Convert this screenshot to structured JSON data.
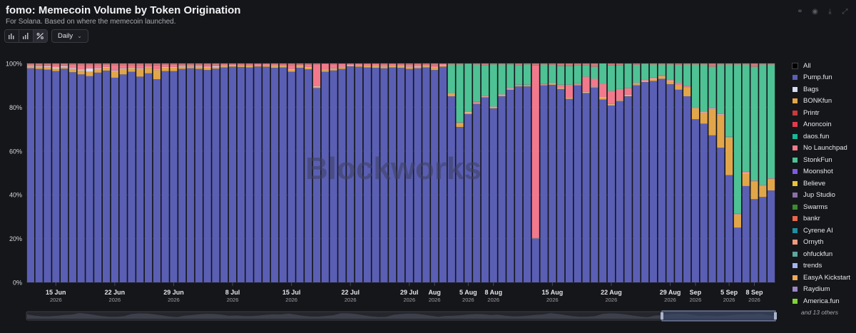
{
  "header": {
    "title": "fomo: Memecoin Volume by Token Origination",
    "subtitle": "For Solana. Based on where the memecoin launched.",
    "interval_label": "Daily",
    "icons": [
      "bar-chart-icon",
      "column-chart-icon",
      "percent-chart-icon",
      "link-icon",
      "camera-icon",
      "download-icon",
      "expand-icon"
    ]
  },
  "watermark": "Blockworks",
  "legend": {
    "items": [
      {
        "label": "All",
        "color": "#000000"
      },
      {
        "label": "Pump.fun",
        "color": "#5a5fb4"
      },
      {
        "label": "Bags",
        "color": "#d6ddf5"
      },
      {
        "label": "BONKfun",
        "color": "#e2a64a"
      },
      {
        "label": "Printr",
        "color": "#c93a3a"
      },
      {
        "label": "Anoncoin",
        "color": "#e63950"
      },
      {
        "label": "daos.fun",
        "color": "#19b896"
      },
      {
        "label": "No Launchpad",
        "color": "#f2798c"
      },
      {
        "label": "StonkFun",
        "color": "#4ec295"
      },
      {
        "label": "Moonshot",
        "color": "#7b5ce2"
      },
      {
        "label": "Believe",
        "color": "#e6c23a"
      },
      {
        "label": "Jup Studio",
        "color": "#8c6fa6"
      },
      {
        "label": "Swarms",
        "color": "#3d8a2e"
      },
      {
        "label": "bankr",
        "color": "#e8674a"
      },
      {
        "label": "Cyrene AI",
        "color": "#1f8fa3"
      },
      {
        "label": "Ornyth",
        "color": "#f09a7e"
      },
      {
        "label": "ohfuckfun",
        "color": "#5ea69e"
      },
      {
        "label": "trends",
        "color": "#a6b3ee"
      },
      {
        "label": "EasyA Kickstart",
        "color": "#eea85a"
      },
      {
        "label": "Raydium",
        "color": "#9a86c6"
      },
      {
        "label": "America.fun",
        "color": "#7fd33a"
      }
    ],
    "more_label": "and 13 others"
  },
  "chart_data": {
    "type": "bar",
    "stacked": "percent",
    "xlabel": "",
    "ylabel": "",
    "ylim": [
      0,
      100
    ],
    "y_ticks": [
      "0%",
      "20%",
      "40%",
      "60%",
      "80%",
      "100%"
    ],
    "x_ticks": [
      {
        "index": 3,
        "line1": "15 Jun",
        "line2": "2026"
      },
      {
        "index": 10,
        "line1": "22 Jun",
        "line2": "2026"
      },
      {
        "index": 17,
        "line1": "29 Jun",
        "line2": "2026"
      },
      {
        "index": 24,
        "line1": "8 Jul",
        "line2": "2026"
      },
      {
        "index": 31,
        "line1": "15 Jul",
        "line2": "2026"
      },
      {
        "index": 38,
        "line1": "22 Jul",
        "line2": "2026"
      },
      {
        "index": 45,
        "line1": "29 Jul",
        "line2": "2026"
      },
      {
        "index": 48,
        "line1": "Aug",
        "line2": "2026"
      },
      {
        "index": 52,
        "line1": "5 Aug",
        "line2": "2026"
      },
      {
        "index": 55,
        "line1": "8 Aug",
        "line2": "2026"
      },
      {
        "index": 62,
        "line1": "15 Aug",
        "line2": "2026"
      },
      {
        "index": 69,
        "line1": "22 Aug",
        "line2": "2026"
      },
      {
        "index": 76,
        "line1": "29 Aug",
        "line2": "2026"
      },
      {
        "index": 79,
        "line1": "Sep",
        "line2": "2026"
      },
      {
        "index": 83,
        "line1": "5 Sep",
        "line2": "2026"
      },
      {
        "index": 86,
        "line1": "8 Sep",
        "line2": "2026"
      }
    ],
    "series": [
      {
        "name": "Pump.fun",
        "color": "#5a5fb4",
        "values": [
          97.8,
          97.5,
          97.2,
          96.5,
          97.6,
          96,
          95,
          94.2,
          95.8,
          96.7,
          93.5,
          95,
          96.2,
          94,
          95.5,
          92.8,
          96.5,
          96.5,
          97.5,
          97.8,
          97.5,
          97,
          97.6,
          98.2,
          98.5,
          98.4,
          98.2,
          98.6,
          98.5,
          98,
          98.2,
          96.2,
          98,
          97.3,
          88.8,
          96.2,
          96.8,
          97.5,
          98.7,
          98.5,
          98.2,
          98,
          97.8,
          98.2,
          98,
          97.5,
          97.8,
          98.2,
          97,
          98.5,
          85,
          71,
          76.5,
          81.5,
          84.5,
          79.5,
          85.2,
          87.8,
          89.5,
          89.5,
          20,
          90,
          89.6,
          88.3,
          83.5,
          90,
          86.5,
          89,
          83.5,
          80.8,
          82.8,
          85,
          90,
          91.5,
          92,
          93,
          90.5,
          88,
          85,
          74.5,
          72.5,
          67.5,
          61.5,
          49,
          25,
          44,
          38,
          39,
          42
        ]
      },
      {
        "name": "BONKfun",
        "color": "#e2a64a",
        "values": [
          0.8,
          1,
          1.2,
          1.2,
          0.8,
          1.5,
          1.8,
          2,
          1.6,
          1.4,
          3,
          2.5,
          1.6,
          3.5,
          2.5,
          4.2,
          1.6,
          1.6,
          1,
          0.8,
          1,
          1.2,
          0.8,
          0.6,
          0.5,
          0.5,
          0.7,
          0.5,
          0.6,
          0.8,
          0.7,
          1,
          0.7,
          0.9,
          0.6,
          0.8,
          0.8,
          0.8,
          0.5,
          0.6,
          0.7,
          0.8,
          0.8,
          0.7,
          0.8,
          0.9,
          0.7,
          0.6,
          1,
          0.5,
          1,
          1.5,
          0.8,
          0.5,
          0.3,
          0.3,
          0.3,
          0.3,
          0.3,
          0.3,
          0.1,
          0.3,
          0.3,
          0.3,
          0.3,
          0.3,
          0.3,
          0.3,
          1,
          0.5,
          0.3,
          0.5,
          0.5,
          0.5,
          1,
          1.2,
          1.5,
          2,
          4,
          5,
          5,
          12,
          15,
          17,
          6,
          6,
          8,
          5,
          5
        ]
      },
      {
        "name": "Bags",
        "color": "#d6ddf5",
        "values": [
          0.3,
          0.3,
          0.3,
          0.5,
          0.3,
          0.4,
          0.5,
          1.5,
          0.3,
          0.3,
          0.3,
          0.3,
          0.3,
          0.3,
          0.3,
          0.3,
          0.3,
          0.3,
          0.3,
          0.2,
          0.3,
          0.3,
          0.3,
          0.2,
          0.2,
          0.2,
          0.2,
          0.2,
          0.2,
          0.2,
          0.2,
          0.3,
          0.2,
          0.2,
          0.2,
          0.2,
          0.2,
          0.2,
          0.2,
          0.2,
          0.2,
          0.2,
          0.2,
          0.2,
          0.2,
          0.2,
          0.2,
          0.2,
          0.2,
          0.2,
          0.2,
          0.2,
          0.2,
          0.2,
          0.2,
          0.2,
          0.2,
          0.2,
          0.2,
          0.2,
          0.1,
          0.2,
          0.2,
          0.2,
          0.2,
          0.2,
          0.2,
          0.2,
          0.2,
          0.2,
          0.2,
          0.2,
          0.2,
          0.2,
          0.2,
          0.2,
          0.2,
          0.2,
          0.2,
          0.2,
          0.2,
          0.2,
          0.2,
          0.2,
          0.2,
          0.2,
          0.2,
          0.2,
          0.2
        ]
      },
      {
        "name": "No Launchpad",
        "color": "#f2798c",
        "values": [
          0.3,
          0.5,
          0.6,
          1,
          0.6,
          1.5,
          2,
          1.5,
          1.5,
          1,
          2.5,
          1.5,
          1.2,
          1.5,
          1,
          1.8,
          1,
          1,
          0.6,
          0.6,
          0.6,
          0.8,
          0.6,
          0.5,
          0.4,
          0.4,
          0.4,
          0.4,
          0.4,
          0.5,
          0.5,
          1.8,
          0.5,
          1,
          10,
          2.5,
          1.8,
          1.2,
          0.4,
          0.5,
          0.6,
          0.8,
          0.8,
          0.6,
          0.6,
          0.8,
          0.8,
          0.6,
          0.8,
          0.5,
          0.3,
          0.3,
          0.3,
          0.3,
          0.3,
          0.3,
          0.3,
          0.3,
          0.3,
          0.3,
          78.5,
          0.3,
          0.3,
          1.5,
          6,
          0.5,
          7,
          3.5,
          6,
          6,
          5,
          3,
          0.5,
          0.3,
          0.3,
          0.3,
          0.3,
          1,
          0.5,
          0.3,
          0.3,
          0.3,
          0.3,
          0.3,
          0.3,
          0.3,
          0.3,
          0.3,
          0.3
        ]
      },
      {
        "name": "StonkFun",
        "color": "#4ec295",
        "values": [
          0,
          0,
          0,
          0,
          0,
          0,
          0,
          0,
          0,
          0,
          0,
          0,
          0,
          0,
          0,
          0,
          0,
          0,
          0,
          0,
          0,
          0,
          0,
          0,
          0,
          0,
          0,
          0,
          0,
          0,
          0,
          0,
          0,
          0,
          0,
          0,
          0,
          0,
          0,
          0,
          0,
          0,
          0,
          0,
          0,
          0,
          0,
          0,
          0,
          0,
          13,
          26.5,
          21.5,
          17,
          14,
          19.3,
          13.7,
          10.8,
          9,
          9.3,
          0,
          8.7,
          8.3,
          8.5,
          8.5,
          8.3,
          5.3,
          5.5,
          9.3,
          11.6,
          11,
          11,
          8.2,
          7.2,
          6,
          4.8,
          7,
          8.2,
          9.8,
          19.5,
          21.5,
          19,
          22.5,
          33,
          68,
          49,
          52,
          55,
          52
        ]
      },
      {
        "name": "Moonshot",
        "color": "#7b5ce2",
        "values": [
          0,
          0,
          0,
          0,
          0,
          0,
          0,
          0,
          0,
          0,
          0,
          0,
          0,
          0,
          0,
          0,
          0,
          0,
          0,
          0,
          0,
          0,
          0,
          0,
          0,
          0,
          0,
          0,
          0,
          0,
          0,
          0,
          0,
          0,
          0,
          0,
          0,
          0,
          0,
          0,
          0,
          0,
          0,
          0,
          0,
          0,
          0,
          0,
          0,
          0,
          0,
          0,
          0,
          0,
          0,
          0,
          0,
          0,
          0,
          0,
          0,
          0,
          0,
          0,
          0,
          0,
          0,
          0,
          0,
          0,
          0,
          0,
          0,
          0,
          0,
          0,
          0,
          0,
          0,
          0,
          0,
          0,
          0,
          0,
          0,
          0,
          0,
          0,
          0
        ]
      },
      {
        "name": "Jup Studio",
        "color": "#8c6fa6",
        "values": [
          0,
          0,
          0,
          0,
          0,
          0,
          0,
          0,
          0,
          0,
          0,
          0,
          0,
          0,
          0,
          0,
          0,
          0,
          0,
          0,
          0,
          0,
          0,
          0,
          0,
          0,
          0,
          0,
          0,
          0,
          0,
          0,
          0,
          0,
          0,
          0,
          0,
          0,
          0,
          0,
          0,
          0,
          0,
          0,
          0,
          0,
          0,
          0,
          0,
          0,
          0,
          0,
          0,
          0,
          0,
          0,
          0,
          0,
          0,
          0,
          0,
          0,
          0,
          0,
          0,
          0,
          0,
          0,
          0,
          0,
          0,
          0,
          0,
          0,
          0,
          0,
          0,
          0,
          0,
          0,
          0,
          0,
          0,
          0,
          0,
          0,
          0,
          0,
          0
        ]
      },
      {
        "name": "Other",
        "color": "#c87878",
        "values": [
          0.8,
          0.7,
          0.7,
          0.8,
          0.7,
          0.6,
          0.7,
          0.8,
          0.8,
          0.6,
          0.7,
          0.7,
          0.7,
          0.7,
          0.7,
          0.9,
          0.6,
          0.6,
          0.6,
          0.6,
          0.6,
          0.7,
          0.7,
          0.5,
          0.4,
          0.5,
          0.5,
          0.3,
          0.3,
          0.5,
          0.4,
          0.7,
          0.6,
          0.6,
          0.4,
          0.3,
          0.4,
          0.3,
          0.2,
          0.2,
          0.3,
          0.2,
          0.4,
          0.3,
          0.4,
          0.6,
          0.5,
          0.4,
          1,
          0.3,
          0.5,
          0.5,
          0.2,
          0.5,
          0.7,
          0.4,
          0.5,
          0.4,
          0.7,
          0.4,
          0.9,
          0.5,
          0.6,
          1.2,
          1.2,
          0.7,
          0.7,
          1.5,
          0,
          0.9,
          0.7,
          0.3,
          0.6,
          0.3,
          0.5,
          0.5,
          0.5,
          0.6,
          0.5,
          0.5,
          0.5,
          1.5,
          0.5,
          0.5,
          0.5,
          0.5,
          1.5,
          0.5,
          0.5
        ]
      }
    ]
  }
}
